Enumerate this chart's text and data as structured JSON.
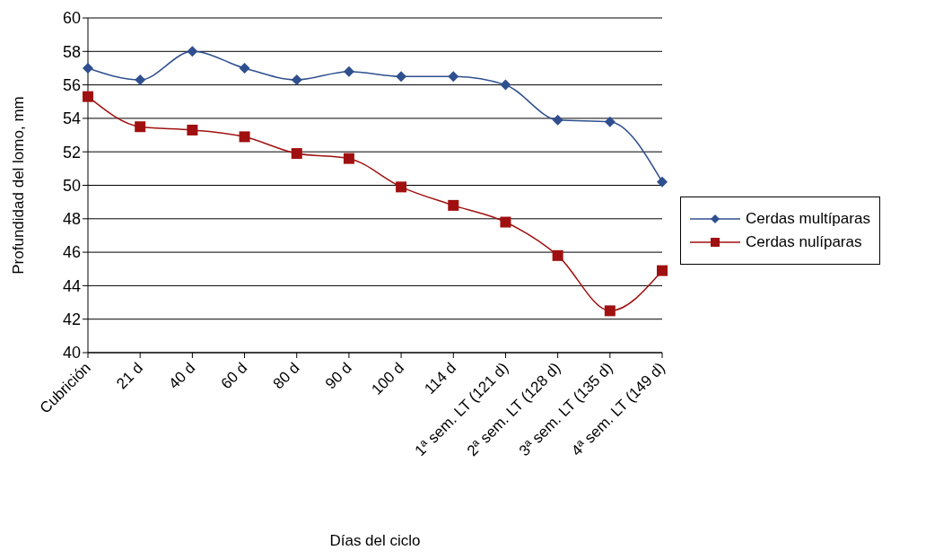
{
  "chart_data": {
    "type": "line",
    "xlabel": "Días del ciclo",
    "ylabel": "Profundidad del lomo, mm",
    "categories": [
      "Cubrición",
      "21 d",
      "40 d",
      "60 d",
      "80 d",
      "90 d",
      "100 d",
      "114 d",
      "1ª sem. LT (121 d)",
      "2ª sem. LT (128 d)",
      "3ª sem. LT (135 d)",
      "4ª sem. LT (149 d)"
    ],
    "series": [
      {
        "name": "Cerdas multíparas",
        "color": "#2f4f8f",
        "marker": "diamond",
        "values": [
          57.0,
          56.3,
          58.0,
          57.0,
          56.3,
          56.8,
          56.5,
          56.5,
          56.0,
          53.9,
          53.8,
          50.2
        ]
      },
      {
        "name": "Cerdas nulíparas",
        "color": "#a01010",
        "marker": "square",
        "values": [
          55.3,
          53.5,
          53.3,
          52.9,
          51.9,
          51.6,
          49.9,
          48.8,
          47.8,
          45.8,
          42.5,
          44.9
        ]
      }
    ],
    "ylim": [
      40,
      60
    ],
    "yticks": [
      40,
      42,
      44,
      46,
      48,
      50,
      52,
      54,
      56,
      58,
      60
    ],
    "grid": "y",
    "legend": "right"
  }
}
